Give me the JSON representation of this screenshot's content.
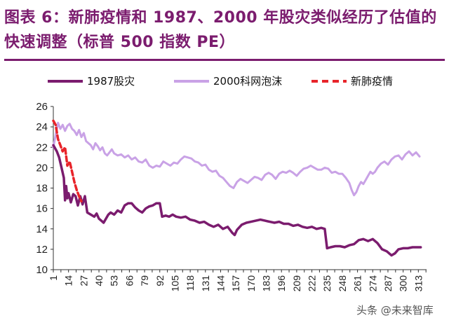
{
  "header": {
    "title": "图表 6：新肺疫情和 1987、2000 年股灾类似经历了估值的快速调整（标普 500 指数 PE）"
  },
  "colors": {
    "title": "#7b1c6e",
    "s1987": "#7b1c6e",
    "s2000": "#c9a2e6",
    "covid": "#e8242a"
  },
  "watermark": "头条 @未来智库",
  "chart_data": {
    "type": "line",
    "title": "",
    "xlabel": "",
    "ylabel": "",
    "ylim": [
      10,
      26
    ],
    "yticks": [
      10,
      12,
      14,
      16,
      18,
      20,
      22,
      24,
      26
    ],
    "xlim": [
      1,
      320
    ],
    "xticks": [
      "1",
      "14",
      "27",
      "40",
      "53",
      "66",
      "79",
      "92",
      "105",
      "118",
      "131",
      "144",
      "157",
      "170",
      "183",
      "196",
      "209",
      "222",
      "235",
      "248",
      "261",
      "274",
      "287",
      "300",
      "313"
    ],
    "legend_position": "top",
    "grid": false,
    "series": [
      {
        "name": "1987股灾",
        "color": "#7b1c6e",
        "style": "solid",
        "points": [
          [
            1,
            22.2
          ],
          [
            4,
            21.6
          ],
          [
            6,
            21.0
          ],
          [
            8,
            20.0
          ],
          [
            10,
            19.0
          ],
          [
            11,
            16.8
          ],
          [
            12,
            18.2
          ],
          [
            13,
            17.0
          ],
          [
            14,
            17.5
          ],
          [
            16,
            16.6
          ],
          [
            18,
            17.4
          ],
          [
            20,
            17.2
          ],
          [
            22,
            16.3
          ],
          [
            24,
            17.2
          ],
          [
            26,
            16.4
          ],
          [
            28,
            17.2
          ],
          [
            30,
            15.6
          ],
          [
            33,
            15.4
          ],
          [
            36,
            15.2
          ],
          [
            38,
            15.5
          ],
          [
            40,
            15.0
          ],
          [
            42,
            14.8
          ],
          [
            44,
            14.6
          ],
          [
            46,
            15.0
          ],
          [
            48,
            15.4
          ],
          [
            50,
            15.6
          ],
          [
            53,
            15.4
          ],
          [
            56,
            15.8
          ],
          [
            59,
            15.6
          ],
          [
            62,
            16.3
          ],
          [
            65,
            16.5
          ],
          [
            68,
            16.5
          ],
          [
            71,
            16.1
          ],
          [
            74,
            15.8
          ],
          [
            77,
            15.6
          ],
          [
            80,
            16.0
          ],
          [
            83,
            16.2
          ],
          [
            86,
            16.3
          ],
          [
            89,
            16.5
          ],
          [
            92,
            16.5
          ],
          [
            94,
            15.2
          ],
          [
            97,
            15.3
          ],
          [
            100,
            15.2
          ],
          [
            103,
            15.4
          ],
          [
            106,
            15.2
          ],
          [
            110,
            15.1
          ],
          [
            114,
            15.2
          ],
          [
            118,
            14.9
          ],
          [
            122,
            14.8
          ],
          [
            126,
            14.6
          ],
          [
            130,
            14.7
          ],
          [
            134,
            14.4
          ],
          [
            138,
            14.2
          ],
          [
            142,
            14.4
          ],
          [
            146,
            14.0
          ],
          [
            150,
            14.2
          ],
          [
            154,
            13.6
          ],
          [
            156,
            13.4
          ],
          [
            158,
            13.9
          ],
          [
            162,
            14.4
          ],
          [
            166,
            14.6
          ],
          [
            170,
            14.7
          ],
          [
            174,
            14.8
          ],
          [
            178,
            14.9
          ],
          [
            182,
            14.8
          ],
          [
            186,
            14.7
          ],
          [
            190,
            14.6
          ],
          [
            194,
            14.7
          ],
          [
            198,
            14.5
          ],
          [
            202,
            14.5
          ],
          [
            206,
            14.3
          ],
          [
            210,
            14.4
          ],
          [
            214,
            14.2
          ],
          [
            218,
            14.1
          ],
          [
            222,
            14.2
          ],
          [
            226,
            14.0
          ],
          [
            230,
            14.1
          ],
          [
            233,
            14.0
          ],
          [
            235,
            12.1
          ],
          [
            238,
            12.2
          ],
          [
            242,
            12.3
          ],
          [
            246,
            12.3
          ],
          [
            250,
            12.2
          ],
          [
            254,
            12.4
          ],
          [
            258,
            12.5
          ],
          [
            262,
            12.9
          ],
          [
            266,
            13.0
          ],
          [
            270,
            12.8
          ],
          [
            274,
            13.0
          ],
          [
            278,
            12.6
          ],
          [
            282,
            12.0
          ],
          [
            286,
            11.8
          ],
          [
            290,
            11.4
          ],
          [
            293,
            11.6
          ],
          [
            296,
            12.0
          ],
          [
            300,
            12.1
          ],
          [
            304,
            12.1
          ],
          [
            308,
            12.2
          ],
          [
            312,
            12.2
          ],
          [
            315,
            12.2
          ]
        ]
      },
      {
        "name": "2000科网泡沫",
        "color": "#c9a2e6",
        "style": "solid",
        "points": [
          [
            1,
            22.0
          ],
          [
            3,
            23.2
          ],
          [
            5,
            24.4
          ],
          [
            7,
            23.8
          ],
          [
            9,
            24.2
          ],
          [
            11,
            23.6
          ],
          [
            13,
            24.1
          ],
          [
            15,
            24.3
          ],
          [
            17,
            23.8
          ],
          [
            19,
            23.6
          ],
          [
            21,
            23.2
          ],
          [
            23,
            23.7
          ],
          [
            25,
            23.0
          ],
          [
            27,
            23.4
          ],
          [
            29,
            22.6
          ],
          [
            31,
            22.4
          ],
          [
            33,
            22.2
          ],
          [
            35,
            21.8
          ],
          [
            37,
            22.4
          ],
          [
            39,
            22.1
          ],
          [
            41,
            21.7
          ],
          [
            43,
            22.0
          ],
          [
            45,
            21.4
          ],
          [
            47,
            21.2
          ],
          [
            49,
            21.5
          ],
          [
            51,
            21.8
          ],
          [
            53,
            21.4
          ],
          [
            56,
            21.2
          ],
          [
            59,
            21.3
          ],
          [
            62,
            21.0
          ],
          [
            65,
            21.2
          ],
          [
            68,
            20.8
          ],
          [
            71,
            21.0
          ],
          [
            74,
            20.6
          ],
          [
            77,
            20.5
          ],
          [
            80,
            20.8
          ],
          [
            83,
            20.2
          ],
          [
            86,
            20.0
          ],
          [
            89,
            20.2
          ],
          [
            92,
            20.1
          ],
          [
            95,
            20.6
          ],
          [
            98,
            20.4
          ],
          [
            101,
            20.2
          ],
          [
            104,
            20.5
          ],
          [
            107,
            20.4
          ],
          [
            110,
            20.8
          ],
          [
            113,
            21.1
          ],
          [
            116,
            21.0
          ],
          [
            119,
            20.9
          ],
          [
            122,
            20.6
          ],
          [
            125,
            20.5
          ],
          [
            128,
            20.2
          ],
          [
            131,
            20.3
          ],
          [
            134,
            19.8
          ],
          [
            137,
            19.6
          ],
          [
            140,
            19.7
          ],
          [
            143,
            19.2
          ],
          [
            146,
            19.0
          ],
          [
            149,
            18.6
          ],
          [
            152,
            18.2
          ],
          [
            155,
            18.0
          ],
          [
            158,
            18.6
          ],
          [
            161,
            18.9
          ],
          [
            164,
            18.7
          ],
          [
            167,
            18.5
          ],
          [
            170,
            18.8
          ],
          [
            173,
            19.1
          ],
          [
            176,
            19.0
          ],
          [
            179,
            18.8
          ],
          [
            182,
            19.3
          ],
          [
            185,
            19.5
          ],
          [
            188,
            19.3
          ],
          [
            191,
            18.9
          ],
          [
            194,
            19.4
          ],
          [
            197,
            19.6
          ],
          [
            200,
            19.5
          ],
          [
            203,
            19.7
          ],
          [
            206,
            19.5
          ],
          [
            209,
            19.2
          ],
          [
            212,
            19.6
          ],
          [
            215,
            19.9
          ],
          [
            218,
            20.0
          ],
          [
            221,
            20.2
          ],
          [
            224,
            20.0
          ],
          [
            227,
            19.8
          ],
          [
            230,
            19.8
          ],
          [
            233,
            20.0
          ],
          [
            236,
            19.9
          ],
          [
            239,
            19.5
          ],
          [
            242,
            19.6
          ],
          [
            245,
            19.4
          ],
          [
            248,
            19.4
          ],
          [
            251,
            19.0
          ],
          [
            254,
            18.5
          ],
          [
            256,
            17.8
          ],
          [
            258,
            17.3
          ],
          [
            260,
            17.6
          ],
          [
            262,
            18.2
          ],
          [
            264,
            18.6
          ],
          [
            266,
            18.4
          ],
          [
            268,
            18.8
          ],
          [
            270,
            19.2
          ],
          [
            272,
            19.6
          ],
          [
            274,
            19.4
          ],
          [
            276,
            19.6
          ],
          [
            278,
            20.0
          ],
          [
            281,
            20.4
          ],
          [
            284,
            20.6
          ],
          [
            287,
            20.3
          ],
          [
            290,
            20.8
          ],
          [
            293,
            21.1
          ],
          [
            296,
            21.2
          ],
          [
            299,
            20.8
          ],
          [
            302,
            21.3
          ],
          [
            305,
            21.6
          ],
          [
            308,
            21.2
          ],
          [
            311,
            21.5
          ],
          [
            314,
            21.1
          ]
        ]
      },
      {
        "name": "新肺疫情",
        "color": "#e8242a",
        "style": "dashed",
        "points": [
          [
            1,
            24.6
          ],
          [
            3,
            24.2
          ],
          [
            5,
            22.8
          ],
          [
            7,
            22.2
          ],
          [
            9,
            21.6
          ],
          [
            11,
            22.0
          ],
          [
            13,
            20.2
          ],
          [
            15,
            20.6
          ],
          [
            17,
            19.6
          ],
          [
            19,
            18.6
          ],
          [
            21,
            17.8
          ],
          [
            23,
            17.2
          ],
          [
            25,
            16.7
          ]
        ]
      }
    ]
  }
}
